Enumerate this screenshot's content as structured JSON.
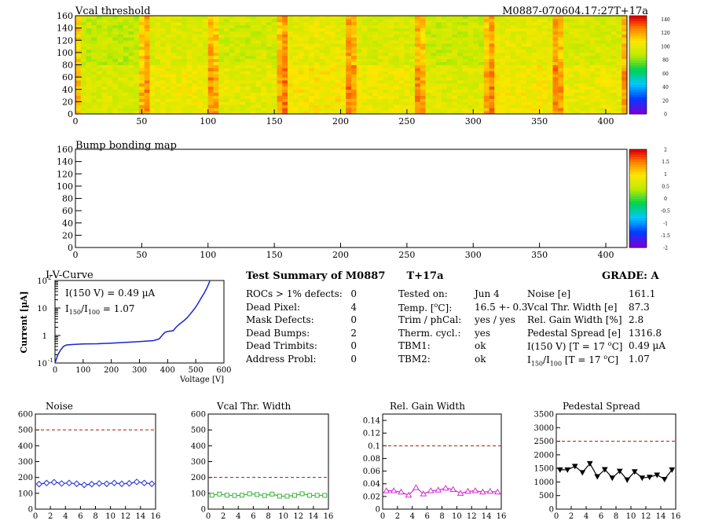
{
  "chart_data": [
    {
      "type": "heatmap",
      "title": "Vcal threshold",
      "top_right_label": "M0887-070604.17:27T+17a",
      "x_ticks": [
        0,
        50,
        100,
        150,
        200,
        250,
        300,
        350,
        400
      ],
      "y_ticks": [
        0,
        20,
        40,
        60,
        80,
        100,
        120,
        140,
        160
      ],
      "xlim": [
        0,
        416
      ],
      "ylim": [
        0,
        160
      ],
      "z_ticks": [
        0,
        20,
        40,
        60,
        80,
        100,
        120,
        140
      ],
      "zlim": [
        0,
        145
      ],
      "grid": false,
      "legend": "colorbar right",
      "pixel_level_note_values": {
        "typical": 95,
        "spread": 8
      }
    },
    {
      "type": "heatmap",
      "title": "Bump bonding map",
      "x_ticks": [
        0,
        50,
        100,
        150,
        200,
        250,
        300,
        350,
        400
      ],
      "y_ticks": [
        0,
        20,
        40,
        60,
        80,
        100,
        120,
        140,
        160
      ],
      "xlim": [
        0,
        416
      ],
      "ylim": [
        0,
        160
      ],
      "z_ticks": [
        "2",
        "1.5",
        "1",
        "0.5",
        "0",
        "-0.5",
        "-1",
        "-1.5",
        "-2"
      ],
      "zlim": [
        -2,
        2
      ],
      "grid": false,
      "legend": "colorbar right"
    },
    {
      "type": "line",
      "title": "I-V-Curve",
      "xlabel": "Voltage [V]",
      "ylabel": "Current [µA]",
      "yscale": "log",
      "x_ticks": [
        "0",
        "100",
        "200",
        "300",
        "400",
        "500",
        "600"
      ],
      "y_ticks": [
        "10",
        "1",
        "10"
      ],
      "y_tick_exps": [
        "2",
        "",
        "-1"
      ],
      "xlim": [
        0,
        600
      ],
      "ylim": [
        0.1,
        100
      ],
      "annotations": [
        "I(150 V) = 0.49 µA",
        "= 1.07"
      ],
      "annotation_i150": "I",
      "annotation_i150_sub1": "150",
      "annotation_i150_sub2": "100",
      "x": [
        0,
        10,
        20,
        30,
        40,
        60,
        100,
        150,
        200,
        250,
        300,
        350,
        370,
        380,
        390,
        400,
        410,
        420,
        430,
        440,
        450,
        460,
        470,
        480,
        490,
        500,
        510,
        520,
        530,
        540,
        550
      ],
      "y": [
        0.1,
        0.2,
        0.3,
        0.4,
        0.45,
        0.47,
        0.49,
        0.5,
        0.53,
        0.56,
        0.6,
        0.65,
        0.75,
        1.0,
        1.3,
        1.4,
        1.45,
        1.5,
        2.0,
        2.5,
        3.0,
        3.6,
        4.5,
        6.0,
        8.0,
        11,
        16,
        24,
        35,
        55,
        95
      ]
    },
    {
      "type": "line",
      "title": "Noise",
      "x_ticks": [
        0,
        2,
        4,
        6,
        8,
        10,
        12,
        14,
        16
      ],
      "y_ticks": [
        0,
        100,
        200,
        300,
        400,
        500,
        600
      ],
      "xlim": [
        0,
        16
      ],
      "ylim": [
        0,
        600
      ],
      "threshold": 500,
      "color": "#1f2fd6",
      "marker": "diamond",
      "x": [
        0.5,
        1.5,
        2.5,
        3.5,
        4.5,
        5.5,
        6.5,
        7.5,
        8.5,
        9.5,
        10.5,
        11.5,
        12.5,
        13.5,
        14.5,
        15.5
      ],
      "y": [
        158,
        165,
        170,
        162,
        165,
        160,
        153,
        158,
        162,
        160,
        165,
        160,
        163,
        172,
        165,
        160
      ]
    },
    {
      "type": "line",
      "title": "Vcal Thr. Width",
      "x_ticks": [
        0,
        2,
        4,
        6,
        8,
        10,
        12,
        14,
        16
      ],
      "y_ticks": [
        0,
        100,
        200,
        300,
        400,
        500,
        600
      ],
      "xlim": [
        0,
        16
      ],
      "ylim": [
        0,
        600
      ],
      "threshold": 200,
      "color": "#3cb43c",
      "marker": "square",
      "x": [
        0.5,
        1.5,
        2.5,
        3.5,
        4.5,
        5.5,
        6.5,
        7.5,
        8.5,
        9.5,
        10.5,
        11.5,
        12.5,
        13.5,
        14.5,
        15.5
      ],
      "y": [
        88,
        95,
        88,
        86,
        88,
        97,
        92,
        86,
        95,
        82,
        82,
        87,
        97,
        87,
        87,
        87
      ]
    },
    {
      "type": "line",
      "title": "Rel. Gain Width",
      "x_ticks": [
        0,
        2,
        4,
        6,
        8,
        10,
        12,
        14,
        16
      ],
      "y_ticks": [
        "0",
        "0.02",
        "0.04",
        "0.06",
        "0.08",
        "0.1",
        "0.12",
        "0.14"
      ],
      "xlim": [
        0,
        16
      ],
      "ylim": [
        0,
        0.15
      ],
      "threshold": 0.1,
      "color": "#d42cd4",
      "marker": "triangle",
      "x": [
        0.5,
        1.5,
        2.5,
        3.5,
        4.5,
        5.5,
        6.5,
        7.5,
        8.5,
        9.5,
        10.5,
        11.5,
        12.5,
        13.5,
        14.5,
        15.5
      ],
      "y": [
        0.029,
        0.029,
        0.027,
        0.022,
        0.034,
        0.024,
        0.029,
        0.03,
        0.033,
        0.031,
        0.025,
        0.028,
        0.029,
        0.027,
        0.028,
        0.027
      ]
    },
    {
      "type": "line",
      "title": "Pedestal Spread",
      "x_ticks": [
        0,
        2,
        4,
        6,
        8,
        10,
        12,
        14,
        16
      ],
      "y_ticks": [
        0,
        500,
        1000,
        1500,
        2000,
        2500,
        3000,
        3500
      ],
      "xlim": [
        0,
        16
      ],
      "ylim": [
        0,
        3500
      ],
      "threshold": 2500,
      "color": "#000000",
      "marker": "down-triangle",
      "x": [
        0.5,
        1.5,
        2.5,
        3.5,
        4.5,
        5.5,
        6.5,
        7.5,
        8.5,
        9.5,
        10.5,
        11.5,
        12.5,
        13.5,
        14.5,
        15.5
      ],
      "y": [
        1450,
        1450,
        1580,
        1350,
        1680,
        1200,
        1460,
        1150,
        1400,
        1080,
        1380,
        1150,
        1180,
        1260,
        1100,
        1450
      ]
    }
  ],
  "summary": {
    "title": "Test Summary of M0887",
    "temp_tag": "T+17a",
    "grade": "GRADE:  A",
    "col1": [
      {
        "label": "ROCs > 1% defects:",
        "value": "0"
      },
      {
        "label": "Dead Pixel:",
        "value": "4"
      },
      {
        "label": "Mask Defects:",
        "value": "0"
      },
      {
        "label": "Dead Bumps:",
        "value": "2"
      },
      {
        "label": "Dead Trimbits:",
        "value": "0"
      },
      {
        "label": "Address Probl:",
        "value": "0"
      }
    ],
    "col2": [
      {
        "label": "Tested on:",
        "value": "Jun 4"
      },
      {
        "label": "Temp. [",
        "label_sup": "o",
        "label_end": "C]:",
        "value": "16.5 +- 0.3"
      },
      {
        "label": "Trim / phCal:",
        "value": "yes / yes"
      },
      {
        "label": "Therm. cycl.:",
        "value": "yes"
      },
      {
        "label": "TBM1:",
        "value": "ok"
      },
      {
        "label": "TBM2:",
        "value": "ok"
      }
    ],
    "col3": [
      {
        "label": "Noise [e]",
        "value": "161.1"
      },
      {
        "label": "Vcal Thr. Width [e]",
        "value": "87.3"
      },
      {
        "label": "Rel. Gain Width [%]",
        "value": "2.8"
      },
      {
        "label": "Pedestal Spread [e]",
        "value": "1316.8"
      },
      {
        "label": "I(150 V) [T = 17 ",
        "label_sup": "o",
        "label_end": "C]",
        "value": "0.49 µA"
      },
      {
        "label": "I",
        "label_sub1": "150",
        "label_mid": "/I",
        "label_sub2": "100",
        "label_end": "  [T = 17 ",
        "label_sup": "o",
        "label_end2": "C]",
        "value": "1.07"
      }
    ]
  }
}
